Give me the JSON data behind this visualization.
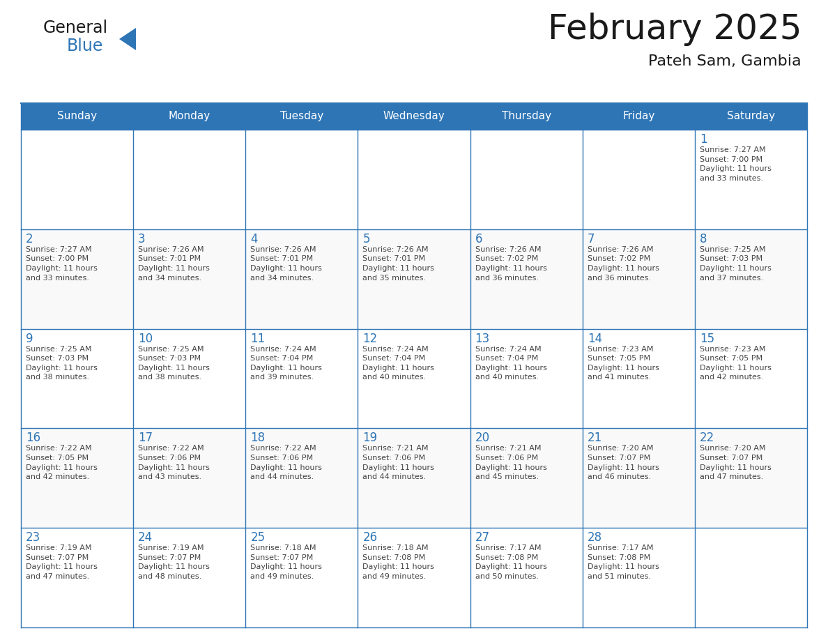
{
  "title": "February 2025",
  "subtitle": "Pateh Sam, Gambia",
  "header_bg": "#2E75B6",
  "header_text_color": "#FFFFFF",
  "cell_bg": "#FFFFFF",
  "grid_color": "#2E75B6",
  "title_color": "#1a1a1a",
  "day_number_color": "#2E75B6",
  "info_color": "#444444",
  "days_of_week": [
    "Sunday",
    "Monday",
    "Tuesday",
    "Wednesday",
    "Thursday",
    "Friday",
    "Saturday"
  ],
  "weeks": [
    [
      {
        "day": null,
        "info": ""
      },
      {
        "day": null,
        "info": ""
      },
      {
        "day": null,
        "info": ""
      },
      {
        "day": null,
        "info": ""
      },
      {
        "day": null,
        "info": ""
      },
      {
        "day": null,
        "info": ""
      },
      {
        "day": 1,
        "info": "Sunrise: 7:27 AM\nSunset: 7:00 PM\nDaylight: 11 hours\nand 33 minutes."
      }
    ],
    [
      {
        "day": 2,
        "info": "Sunrise: 7:27 AM\nSunset: 7:00 PM\nDaylight: 11 hours\nand 33 minutes."
      },
      {
        "day": 3,
        "info": "Sunrise: 7:26 AM\nSunset: 7:01 PM\nDaylight: 11 hours\nand 34 minutes."
      },
      {
        "day": 4,
        "info": "Sunrise: 7:26 AM\nSunset: 7:01 PM\nDaylight: 11 hours\nand 34 minutes."
      },
      {
        "day": 5,
        "info": "Sunrise: 7:26 AM\nSunset: 7:01 PM\nDaylight: 11 hours\nand 35 minutes."
      },
      {
        "day": 6,
        "info": "Sunrise: 7:26 AM\nSunset: 7:02 PM\nDaylight: 11 hours\nand 36 minutes."
      },
      {
        "day": 7,
        "info": "Sunrise: 7:26 AM\nSunset: 7:02 PM\nDaylight: 11 hours\nand 36 minutes."
      },
      {
        "day": 8,
        "info": "Sunrise: 7:25 AM\nSunset: 7:03 PM\nDaylight: 11 hours\nand 37 minutes."
      }
    ],
    [
      {
        "day": 9,
        "info": "Sunrise: 7:25 AM\nSunset: 7:03 PM\nDaylight: 11 hours\nand 38 minutes."
      },
      {
        "day": 10,
        "info": "Sunrise: 7:25 AM\nSunset: 7:03 PM\nDaylight: 11 hours\nand 38 minutes."
      },
      {
        "day": 11,
        "info": "Sunrise: 7:24 AM\nSunset: 7:04 PM\nDaylight: 11 hours\nand 39 minutes."
      },
      {
        "day": 12,
        "info": "Sunrise: 7:24 AM\nSunset: 7:04 PM\nDaylight: 11 hours\nand 40 minutes."
      },
      {
        "day": 13,
        "info": "Sunrise: 7:24 AM\nSunset: 7:04 PM\nDaylight: 11 hours\nand 40 minutes."
      },
      {
        "day": 14,
        "info": "Sunrise: 7:23 AM\nSunset: 7:05 PM\nDaylight: 11 hours\nand 41 minutes."
      },
      {
        "day": 15,
        "info": "Sunrise: 7:23 AM\nSunset: 7:05 PM\nDaylight: 11 hours\nand 42 minutes."
      }
    ],
    [
      {
        "day": 16,
        "info": "Sunrise: 7:22 AM\nSunset: 7:05 PM\nDaylight: 11 hours\nand 42 minutes."
      },
      {
        "day": 17,
        "info": "Sunrise: 7:22 AM\nSunset: 7:06 PM\nDaylight: 11 hours\nand 43 minutes."
      },
      {
        "day": 18,
        "info": "Sunrise: 7:22 AM\nSunset: 7:06 PM\nDaylight: 11 hours\nand 44 minutes."
      },
      {
        "day": 19,
        "info": "Sunrise: 7:21 AM\nSunset: 7:06 PM\nDaylight: 11 hours\nand 44 minutes."
      },
      {
        "day": 20,
        "info": "Sunrise: 7:21 AM\nSunset: 7:06 PM\nDaylight: 11 hours\nand 45 minutes."
      },
      {
        "day": 21,
        "info": "Sunrise: 7:20 AM\nSunset: 7:07 PM\nDaylight: 11 hours\nand 46 minutes."
      },
      {
        "day": 22,
        "info": "Sunrise: 7:20 AM\nSunset: 7:07 PM\nDaylight: 11 hours\nand 47 minutes."
      }
    ],
    [
      {
        "day": 23,
        "info": "Sunrise: 7:19 AM\nSunset: 7:07 PM\nDaylight: 11 hours\nand 47 minutes."
      },
      {
        "day": 24,
        "info": "Sunrise: 7:19 AM\nSunset: 7:07 PM\nDaylight: 11 hours\nand 48 minutes."
      },
      {
        "day": 25,
        "info": "Sunrise: 7:18 AM\nSunset: 7:07 PM\nDaylight: 11 hours\nand 49 minutes."
      },
      {
        "day": 26,
        "info": "Sunrise: 7:18 AM\nSunset: 7:08 PM\nDaylight: 11 hours\nand 49 minutes."
      },
      {
        "day": 27,
        "info": "Sunrise: 7:17 AM\nSunset: 7:08 PM\nDaylight: 11 hours\nand 50 minutes."
      },
      {
        "day": 28,
        "info": "Sunrise: 7:17 AM\nSunset: 7:08 PM\nDaylight: 11 hours\nand 51 minutes."
      },
      {
        "day": null,
        "info": ""
      }
    ]
  ],
  "fig_width": 11.88,
  "fig_height": 9.18,
  "dpi": 100
}
